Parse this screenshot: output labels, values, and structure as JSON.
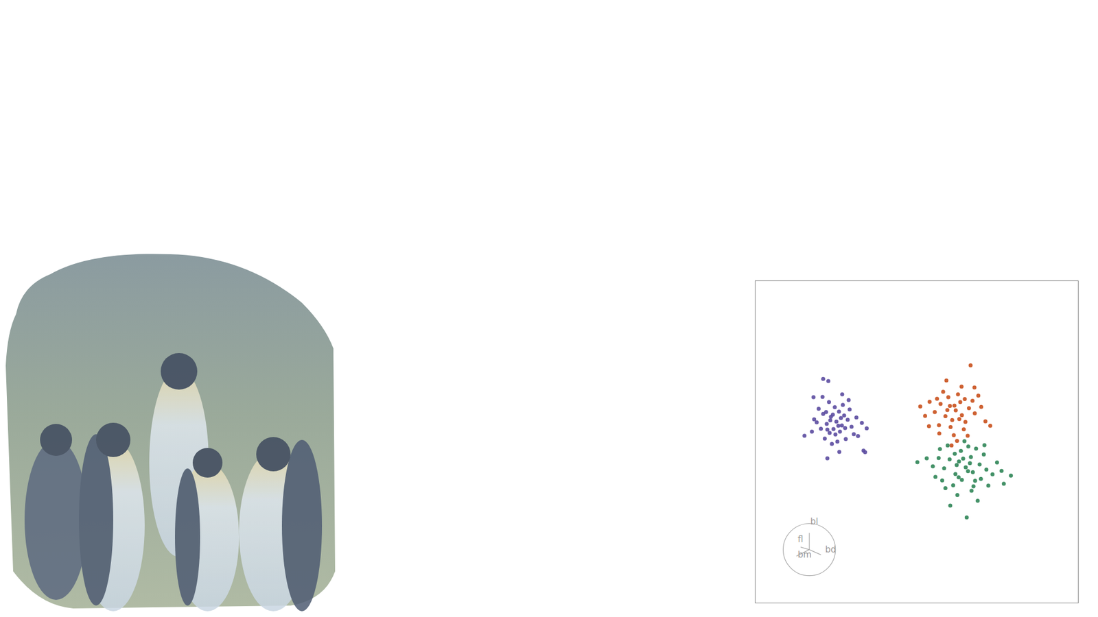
{
  "chart_data": {
    "type": "scatter",
    "xlim": [
      0,
      100
    ],
    "ylim": [
      0,
      100
    ],
    "tick_labels": false,
    "grid": false,
    "marker": "circle",
    "annotations": [
      "bl",
      "fl",
      "bm",
      "bd"
    ],
    "series": [
      {
        "color": "#5b4ba0",
        "points": [
          [
            25.1,
            56.3
          ],
          [
            23.4,
            57.8
          ],
          [
            26.8,
            55.1
          ],
          [
            24.2,
            54.0
          ],
          [
            27.5,
            58.2
          ],
          [
            22.1,
            55.6
          ],
          [
            25.9,
            59.4
          ],
          [
            28.6,
            56.9
          ],
          [
            23.0,
            52.8
          ],
          [
            26.2,
            53.2
          ],
          [
            21.0,
            58.7
          ],
          [
            24.6,
            60.8
          ],
          [
            29.8,
            54.7
          ],
          [
            20.3,
            54.1
          ],
          [
            27.1,
            61.5
          ],
          [
            22.8,
            62.4
          ],
          [
            18.2,
            57.0
          ],
          [
            31.3,
            57.6
          ],
          [
            25.4,
            50.1
          ],
          [
            19.6,
            60.3
          ],
          [
            30.5,
            52.4
          ],
          [
            23.7,
            49.4
          ],
          [
            26.9,
            64.8
          ],
          [
            17.5,
            53.2
          ],
          [
            33.0,
            55.9
          ],
          [
            21.5,
            51.0
          ],
          [
            28.0,
            50.9
          ],
          [
            15.2,
            51.9
          ],
          [
            34.5,
            54.2
          ],
          [
            20.8,
            64.0
          ],
          [
            26.0,
            46.9
          ],
          [
            18.0,
            63.9
          ],
          [
            22.6,
            68.9
          ],
          [
            29.2,
            60.1
          ],
          [
            24.0,
            58.5
          ],
          [
            25.7,
            55.0
          ],
          [
            27.8,
            54.3
          ],
          [
            23.2,
            56.7
          ],
          [
            21.9,
            59.3
          ],
          [
            31.8,
            51.8
          ],
          [
            33.5,
            47.3
          ],
          [
            19.0,
            56.1
          ],
          [
            24.8,
            52.3
          ],
          [
            28.9,
            63.0
          ],
          [
            22.3,
            53.8
          ],
          [
            26.5,
            57.4
          ],
          [
            22.3,
            44.9
          ],
          [
            21.0,
            69.6
          ],
          [
            34.0,
            46.8
          ]
        ]
      },
      {
        "color": "#c9501c",
        "points": [
          [
            62.1,
            59.8
          ],
          [
            60.3,
            61.2
          ],
          [
            64.0,
            58.3
          ],
          [
            58.9,
            58.0
          ],
          [
            63.5,
            62.4
          ],
          [
            61.0,
            56.8
          ],
          [
            66.2,
            60.5
          ],
          [
            57.4,
            61.8
          ],
          [
            65.1,
            56.2
          ],
          [
            59.8,
            63.9
          ],
          [
            68.0,
            58.9
          ],
          [
            55.6,
            59.3
          ],
          [
            62.8,
            64.8
          ],
          [
            60.5,
            54.6
          ],
          [
            67.3,
            62.8
          ],
          [
            54.0,
            62.5
          ],
          [
            64.6,
            53.9
          ],
          [
            70.0,
            60.9
          ],
          [
            58.2,
            65.6
          ],
          [
            52.6,
            58.1
          ],
          [
            71.3,
            56.4
          ],
          [
            56.9,
            55.2
          ],
          [
            63.9,
            67.2
          ],
          [
            61.5,
            52.1
          ],
          [
            69.1,
            64.4
          ],
          [
            53.8,
            54.9
          ],
          [
            66.7,
            73.8
          ],
          [
            59.2,
            69.1
          ],
          [
            72.8,
            55.0
          ],
          [
            62.5,
            50.3
          ],
          [
            60.8,
            48.9
          ],
          [
            51.1,
            61.0
          ],
          [
            65.8,
            51.9
          ],
          [
            57.0,
            52.6
          ],
          [
            67.9,
            66.9
          ],
          [
            61.7,
            61.3
          ],
          [
            63.2,
            57.1
          ],
          [
            59.5,
            59.9
          ],
          [
            64.9,
            63.3
          ],
          [
            56.3,
            63.4
          ]
        ]
      },
      {
        "color": "#2f8556",
        "points": [
          [
            65.2,
            42.1
          ],
          [
            63.1,
            43.9
          ],
          [
            67.4,
            40.6
          ],
          [
            62.0,
            40.0
          ],
          [
            66.8,
            45.3
          ],
          [
            64.0,
            38.2
          ],
          [
            69.5,
            43.0
          ],
          [
            60.2,
            44.6
          ],
          [
            68.1,
            37.9
          ],
          [
            63.7,
            47.2
          ],
          [
            71.6,
            41.4
          ],
          [
            58.5,
            41.8
          ],
          [
            66.0,
            48.6
          ],
          [
            61.3,
            36.5
          ],
          [
            70.8,
            46.1
          ],
          [
            56.8,
            45.0
          ],
          [
            67.0,
            34.8
          ],
          [
            73.5,
            39.9
          ],
          [
            59.6,
            48.9
          ],
          [
            55.0,
            42.4
          ],
          [
            74.9,
            43.6
          ],
          [
            57.9,
            38.0
          ],
          [
            64.8,
            50.2
          ],
          [
            62.6,
            33.5
          ],
          [
            72.2,
            36.4
          ],
          [
            53.1,
            44.9
          ],
          [
            68.9,
            31.7
          ],
          [
            60.4,
            30.2
          ],
          [
            76.3,
            41.0
          ],
          [
            50.2,
            43.7
          ],
          [
            79.2,
            39.5
          ],
          [
            65.5,
            26.5
          ],
          [
            63.0,
            39.0
          ],
          [
            66.5,
            43.4
          ],
          [
            61.8,
            46.3
          ],
          [
            69.9,
            38.5
          ],
          [
            64.4,
            44.8
          ],
          [
            58.9,
            35.6
          ],
          [
            71.0,
            49.0
          ],
          [
            55.8,
            39.1
          ],
          [
            67.6,
            36.2
          ],
          [
            65.9,
            40.9
          ],
          [
            62.4,
            42.8
          ],
          [
            77.0,
            37.0
          ],
          [
            57.2,
            47.8
          ],
          [
            68.4,
            47.9
          ]
        ]
      }
    ]
  }
}
